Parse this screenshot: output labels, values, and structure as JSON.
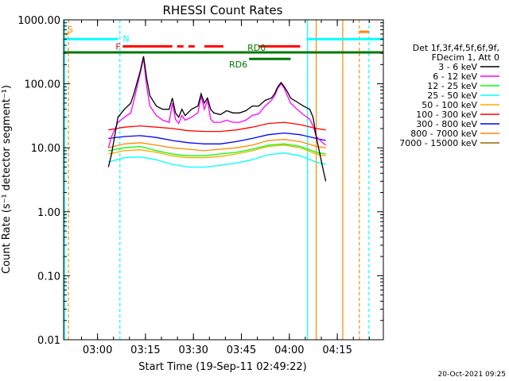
{
  "chart_data": {
    "type": "line",
    "title": "RHESSI Count Rates",
    "xlabel": "Start Time (19-Sep-11 02:49:22)",
    "ylabel": "Count Rate (s⁻¹ detector segment⁻¹)",
    "y_scale": "log",
    "ylim": [
      0.01,
      1000
    ],
    "xlim_minutes": [
      0,
      100
    ],
    "x_ticks": [
      {
        "minute": 10.6,
        "label": "03:00"
      },
      {
        "minute": 25.6,
        "label": "03:15"
      },
      {
        "minute": 40.6,
        "label": "03:30"
      },
      {
        "minute": 55.6,
        "label": "03:45"
      },
      {
        "minute": 70.6,
        "label": "04:00"
      },
      {
        "minute": 85.6,
        "label": "04:15"
      }
    ],
    "y_ticks": [
      {
        "value": 1000,
        "label": "1000.00"
      },
      {
        "value": 100,
        "label": "100.00"
      },
      {
        "value": 10,
        "label": "10.00"
      },
      {
        "value": 1,
        "label": "1.00"
      },
      {
        "value": 0.1,
        "label": "0.10"
      },
      {
        "value": 0.01,
        "label": "0.01"
      }
    ],
    "legend_header": [
      "Det 1f,3f,4f,5f,6f,9f,",
      "FDecim 1, Att 0"
    ],
    "series": [
      {
        "name": "3 - 6 keV",
        "color": "#000000",
        "minutes": [
          14,
          15,
          17,
          19,
          21,
          22,
          24,
          25,
          26,
          27,
          29,
          31,
          33,
          34,
          35,
          36,
          37,
          38,
          40,
          42,
          43,
          44,
          45,
          46,
          47,
          49,
          51,
          53,
          55,
          57,
          59,
          61,
          63,
          65,
          66,
          67,
          68,
          69,
          70,
          71,
          73,
          75,
          77,
          78,
          79,
          81,
          82
        ],
        "values": [
          5,
          8,
          30,
          40,
          50,
          70,
          160,
          270,
          120,
          65,
          45,
          40,
          40,
          60,
          35,
          30,
          40,
          32,
          40,
          45,
          70,
          50,
          60,
          40,
          35,
          33,
          38,
          35,
          35,
          38,
          45,
          45,
          55,
          60,
          70,
          90,
          105,
          90,
          75,
          60,
          52,
          45,
          40,
          30,
          15,
          5,
          3
        ]
      },
      {
        "name": "6 - 12 keV",
        "color": "#ff00ff",
        "minutes": [
          14,
          15,
          17,
          19,
          21,
          22,
          24,
          25,
          26,
          27,
          29,
          31,
          33,
          34,
          35,
          36,
          37,
          38,
          40,
          42,
          43,
          44,
          45,
          46,
          47,
          49,
          51,
          53,
          55,
          57,
          59,
          61,
          63,
          65,
          66,
          67,
          68,
          69,
          70,
          71,
          73,
          75,
          77,
          78,
          79,
          81,
          82
        ],
        "values": [
          10,
          15,
          25,
          30,
          35,
          55,
          150,
          250,
          90,
          45,
          32,
          27,
          25,
          50,
          28,
          24,
          32,
          27,
          30,
          35,
          65,
          40,
          55,
          28,
          25,
          25,
          27,
          25,
          25,
          27,
          32,
          34,
          45,
          55,
          65,
          85,
          100,
          85,
          65,
          50,
          40,
          33,
          28,
          22,
          15,
          12,
          11
        ]
      },
      {
        "name": "12 - 25 keV",
        "color": "#00ff00",
        "minutes": [
          14,
          19,
          24,
          29,
          34,
          39,
          44,
          49,
          54,
          59,
          64,
          69,
          74,
          79,
          82
        ],
        "values": [
          9,
          10,
          10.5,
          9,
          8,
          7.5,
          7.5,
          8,
          8.5,
          9.5,
          11,
          11.5,
          10.5,
          8.5,
          8
        ]
      },
      {
        "name": "25 - 50 keV",
        "color": "#00ffff",
        "minutes": [
          14,
          19,
          24,
          29,
          34,
          39,
          44,
          49,
          54,
          59,
          64,
          69,
          74,
          79,
          82
        ],
        "values": [
          6,
          7,
          7.2,
          6.5,
          5.5,
          5,
          5,
          5.3,
          5.8,
          6.5,
          7.8,
          8.3,
          7.5,
          6,
          5.5
        ]
      },
      {
        "name": "50 - 100 keV",
        "color": "#ffaa00",
        "minutes": [
          14,
          19,
          24,
          29,
          34,
          39,
          44,
          49,
          54,
          59,
          64,
          69,
          74,
          79,
          82
        ],
        "values": [
          8,
          9,
          9.3,
          8.5,
          7.5,
          7,
          7,
          7.3,
          8,
          9,
          10.5,
          11,
          10,
          8,
          7.5
        ]
      },
      {
        "name": "100 - 300 keV",
        "color": "#ff0000",
        "minutes": [
          14,
          19,
          24,
          29,
          34,
          39,
          44,
          49,
          54,
          59,
          64,
          69,
          74,
          79,
          82
        ],
        "values": [
          19,
          21,
          22,
          21,
          20,
          18.5,
          18,
          18,
          19,
          21,
          24,
          25,
          23,
          20,
          19
        ]
      },
      {
        "name": "300 - 800 keV",
        "color": "#0000ff",
        "minutes": [
          14,
          19,
          24,
          29,
          34,
          39,
          44,
          49,
          54,
          59,
          64,
          69,
          74,
          79,
          82
        ],
        "values": [
          14,
          15,
          15.5,
          14.5,
          13,
          12,
          11.5,
          11.5,
          12.5,
          14,
          16,
          17,
          16,
          14,
          13
        ]
      },
      {
        "name": "800 - 7000 keV",
        "color": "#ff8800",
        "minutes": [
          14,
          19,
          24,
          29,
          34,
          39,
          44,
          49,
          54,
          59,
          64,
          69,
          74,
          79,
          82
        ],
        "values": [
          10,
          11.5,
          12,
          11,
          10,
          9.5,
          9,
          9.5,
          10,
          11,
          13,
          13.5,
          12.5,
          10.5,
          10
        ]
      },
      {
        "name": "7000 - 15000 keV",
        "color": "#996600",
        "minutes": [],
        "values": []
      }
    ],
    "attenuator_bars": [
      {
        "label": "S",
        "color": "#ff8800",
        "level": 600,
        "start": 0.7,
        "end": 1.4
      },
      {
        "label": "N",
        "color": "#00ffff",
        "level": 500,
        "start": 0,
        "end": 17
      },
      {
        "label": "",
        "color": "#00ffff",
        "level": 500,
        "start": 76,
        "end": 100
      },
      {
        "label": "",
        "color": "#ff8800",
        "level": 650,
        "start": 92.5,
        "end": 95.5
      },
      {
        "label": "F",
        "color": "#ff0000",
        "level": 385,
        "start": 18.5,
        "end": 34
      },
      {
        "label": "",
        "color": "#ff0000",
        "level": 385,
        "start": 35.5,
        "end": 37.5
      },
      {
        "label": "",
        "color": "#ff0000",
        "level": 385,
        "start": 39,
        "end": 41
      },
      {
        "label": "",
        "color": "#ff0000",
        "level": 385,
        "start": 44,
        "end": 50
      },
      {
        "label": "",
        "color": "#ff0000",
        "level": 385,
        "start": 61,
        "end": 74
      },
      {
        "label": "",
        "color": "#007700",
        "level": 310,
        "start": 0,
        "end": 57
      },
      {
        "label": "",
        "color": "#007700",
        "level": 310,
        "start": 60,
        "end": 100
      },
      {
        "label": "RD0",
        "color": "#007700",
        "level": 310,
        "start": 57,
        "end": 60
      },
      {
        "label": "RD6",
        "color": "#007700",
        "level": 245,
        "start": 58,
        "end": 71
      }
    ],
    "vertical_lines": [
      {
        "minute": 0.3,
        "color": "#00ffff",
        "style": "solid"
      },
      {
        "minute": 1.5,
        "color": "#ff8800",
        "style": "dashed"
      },
      {
        "minute": 17.6,
        "color": "#00ffff",
        "style": "dashed"
      },
      {
        "minute": 76.3,
        "color": "#00ffff",
        "style": "solid"
      },
      {
        "minute": 79,
        "color": "#ff8800",
        "style": "solid"
      },
      {
        "minute": 87.3,
        "color": "#ff8800",
        "style": "solid"
      },
      {
        "minute": 92.5,
        "color": "#ff8800",
        "style": "dashed"
      },
      {
        "minute": 95.5,
        "color": "#00ffff",
        "style": "dashed"
      }
    ],
    "footer": "20-Oct-2021 09:25"
  }
}
